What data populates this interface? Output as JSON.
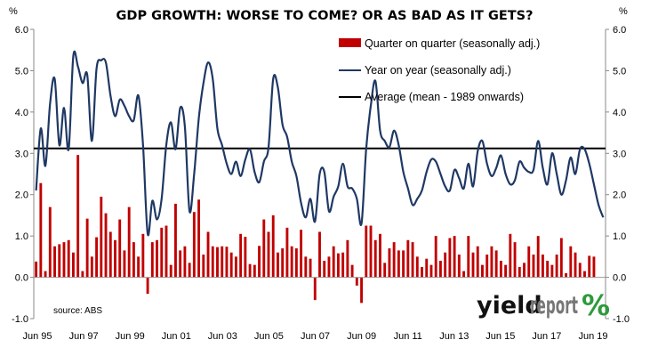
{
  "chart_data": {
    "type": "bar+line",
    "title": "GDP GROWTH: WORSE TO COME? OR AS BAD AS IT GETS?",
    "left_unit": "%",
    "right_unit": "%",
    "ylim": [
      -1.0,
      6.0
    ],
    "yticks": [
      "-1.0",
      "0.0",
      "1.0",
      "2.0",
      "3.0",
      "4.0",
      "5.0",
      "6.0"
    ],
    "x_tick_labels": [
      "Jun 95",
      "Jun 97",
      "Jun 99",
      "Jun 01",
      "Jun 03",
      "Jun 05",
      "Jun 07",
      "Jun 09",
      "Jun 11",
      "Jun 13",
      "Jun 15",
      "Jun 17",
      "Jun 19"
    ],
    "x_tick_positions": [
      0,
      8,
      16,
      24,
      32,
      40,
      48,
      56,
      64,
      72,
      80,
      88,
      96
    ],
    "grid": false,
    "legend_position": "top-right",
    "series": [
      {
        "name": "Quarter on quarter (seasonally adj.)",
        "kind": "bar",
        "color": "#c00000",
        "values": [
          0.38,
          2.28,
          0.15,
          1.7,
          0.75,
          0.8,
          0.85,
          0.9,
          0.6,
          2.96,
          0.15,
          1.42,
          0.5,
          0.97,
          1.95,
          1.55,
          1.1,
          0.9,
          1.4,
          0.65,
          1.7,
          0.85,
          0.5,
          1.05,
          -0.4,
          0.85,
          0.9,
          1.2,
          1.25,
          0.3,
          1.78,
          0.65,
          0.75,
          0.35,
          1.58,
          1.88,
          0.55,
          1.1,
          0.75,
          0.73,
          0.75,
          0.74,
          0.6,
          0.5,
          1.05,
          0.98,
          0.32,
          0.3,
          0.76,
          1.4,
          1.1,
          1.5,
          0.6,
          0.7,
          1.2,
          0.75,
          0.7,
          1.15,
          0.5,
          0.45,
          -0.55,
          1.1,
          0.4,
          0.5,
          0.75,
          0.58,
          0.6,
          0.9,
          0.3,
          -0.2,
          -0.62,
          1.25,
          1.25,
          0.9,
          1.05,
          0.35,
          0.7,
          0.85,
          0.65,
          0.65,
          0.9,
          0.85,
          0.5,
          0.25,
          0.45,
          0.3,
          1.0,
          0.4,
          0.6,
          0.95,
          1.0,
          0.55,
          0.15,
          1.0,
          0.6,
          0.75,
          0.3,
          0.55,
          0.75,
          0.65,
          0.4,
          0.3,
          1.05,
          0.85,
          0.25,
          0.35,
          0.75,
          0.55,
          1.0,
          0.55,
          0.4,
          0.3,
          0.55,
          0.95,
          0.1,
          0.75,
          0.6,
          0.35,
          0.15,
          0.52,
          0.5
        ],
        "values_note": ""
      },
      {
        "name": "Year on year (seasonally adj.)",
        "kind": "line",
        "color": "#1f3864",
        "values": [
          2.1,
          3.6,
          2.7,
          4.2,
          4.8,
          3.2,
          4.1,
          3.1,
          5.35,
          5.1,
          4.7,
          4.9,
          3.3,
          5.05,
          5.25,
          5.2,
          4.4,
          3.9,
          4.3,
          4.15,
          3.9,
          3.8,
          4.4,
          3.2,
          1.05,
          1.85,
          1.4,
          1.9,
          3.2,
          3.75,
          3.1,
          4.1,
          3.65,
          1.6,
          2.5,
          3.85,
          4.7,
          5.2,
          4.8,
          3.6,
          3.2,
          2.75,
          2.5,
          2.8,
          2.45,
          2.85,
          3.1,
          2.55,
          2.3,
          2.8,
          3.15,
          4.8,
          4.6,
          3.7,
          3.4,
          2.8,
          2.45,
          1.8,
          1.45,
          1.9,
          1.35,
          2.5,
          2.55,
          1.6,
          1.95,
          2.2,
          2.75,
          2.2,
          2.15,
          1.9,
          1.3,
          3.1,
          4.15,
          4.75,
          3.55,
          3.3,
          3.15,
          3.55,
          3.2,
          2.55,
          2.15,
          1.75,
          1.9,
          2.1,
          2.55,
          2.85,
          2.8,
          2.5,
          2.2,
          2.1,
          2.6,
          2.4,
          2.15,
          2.75,
          2.2,
          3.05,
          3.3,
          2.75,
          2.45,
          2.65,
          2.95,
          2.5,
          2.25,
          2.35,
          2.8,
          2.65,
          2.55,
          2.6,
          3.3,
          2.65,
          2.25,
          3.0,
          2.5,
          2.0,
          2.35,
          2.9,
          2.5,
          3.1,
          3.1,
          2.75,
          2.25,
          1.75,
          1.45
        ],
        "values_note": ""
      },
      {
        "name": "Average (mean - 1989 onwards)",
        "kind": "hline",
        "color": "#000000",
        "value": 3.12
      }
    ],
    "annotations": {
      "source": "source: ABS"
    }
  },
  "logo": {
    "text_dark": "yield",
    "text_light": "report",
    "symbol": "%"
  }
}
